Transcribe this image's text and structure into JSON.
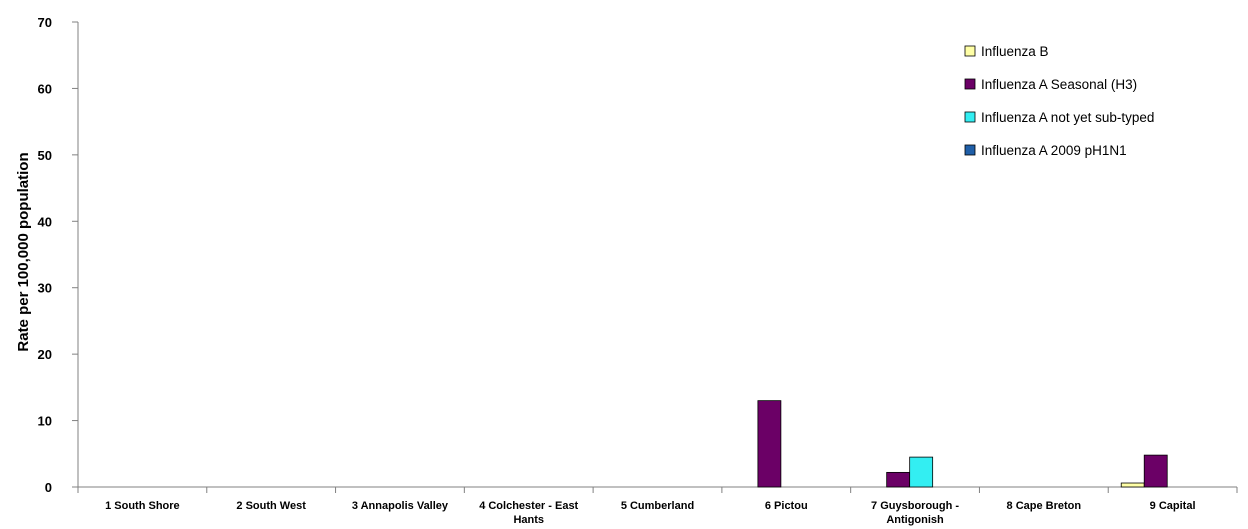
{
  "chart_data": {
    "type": "bar",
    "title": "",
    "xlabel": "",
    "ylabel": "Rate per 100,000 population",
    "ylim": [
      0,
      70
    ],
    "yticks": [
      0,
      10,
      20,
      30,
      40,
      50,
      60,
      70
    ],
    "grid": false,
    "legend_position": "top-right",
    "categories": [
      "1 South Shore",
      "2 South West",
      "3 Annapolis Valley",
      "4 Colchester - East Hants",
      "5 Cumberland",
      "6 Pictou",
      "7 Guysborough - Antigonish",
      "8 Cape Breton",
      "9 Capital"
    ],
    "series": [
      {
        "name": "Influenza A 2009 pH1N1",
        "color": "#1F5FA8",
        "values": [
          0,
          0,
          0,
          0,
          0,
          0,
          0,
          0,
          0
        ]
      },
      {
        "name": "Influenza A not yet sub-typed",
        "color": "#33EEF2",
        "values": [
          0,
          0,
          0,
          0,
          0,
          0,
          4.5,
          0,
          0
        ]
      },
      {
        "name": "Influenza A Seasonal (H3)",
        "color": "#6B0066",
        "values": [
          0,
          0,
          0,
          0,
          0,
          13.0,
          2.2,
          0,
          4.8
        ]
      },
      {
        "name": "Influenza B",
        "color": "#FFFFA6",
        "values": [
          0,
          0,
          0,
          0,
          0,
          0,
          0,
          0,
          0.6
        ]
      }
    ],
    "bar_order": [
      "Influenza B",
      "Influenza A Seasonal (H3)",
      "Influenza A not yet sub-typed",
      "Influenza A 2009 pH1N1"
    ],
    "legend_order": [
      "Influenza B",
      "Influenza A Seasonal (H3)",
      "Influenza A not yet sub-typed",
      "Influenza A 2009 pH1N1"
    ]
  }
}
